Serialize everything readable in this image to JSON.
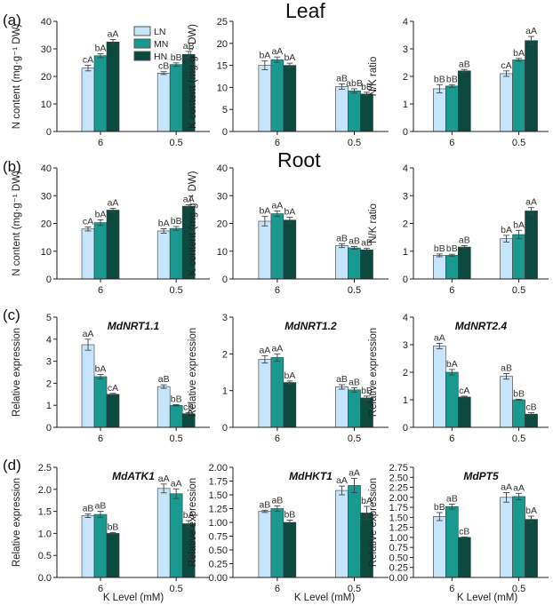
{
  "series_names": [
    "LN",
    "MN",
    "HN"
  ],
  "series_colors": [
    "#c6e5fb",
    "#199990",
    "#0c4a40"
  ],
  "categories": [
    "6",
    "0.5"
  ],
  "section_titles": {
    "leaf": "Leaf",
    "root": "Root"
  },
  "panel_labels": [
    "(a)",
    "(b)",
    "(c)",
    "(d)"
  ],
  "shared_xlabel": "K Level (mM)",
  "chart_data": [
    {
      "type": "bar",
      "row": 0,
      "col": 0,
      "title": "",
      "ylabel": "N content (mg·g⁻¹ DW)",
      "ylim": [
        0,
        40
      ],
      "yticks": [
        "0",
        "10",
        "20",
        "30",
        "40"
      ],
      "series": [
        {
          "name": "LN",
          "values": [
            23,
            21.2
          ],
          "errors": [
            1.0,
            0.5
          ]
        },
        {
          "name": "MN",
          "values": [
            27.5,
            24.3
          ],
          "errors": [
            0.7,
            0.6
          ]
        },
        {
          "name": "HN",
          "values": [
            32.5,
            28
          ],
          "errors": [
            0.9,
            1.1
          ]
        }
      ],
      "labels": [
        [
          "cA",
          "bA",
          "aA"
        ],
        [
          "cB",
          "bB",
          "aB"
        ]
      ]
    },
    {
      "type": "bar",
      "row": 0,
      "col": 1,
      "title": "",
      "ylabel": "K content (mg·g⁻¹ DW)",
      "ylim": [
        0,
        25
      ],
      "yticks": [
        "0",
        "5",
        "10",
        "15",
        "20",
        "25"
      ],
      "series": [
        {
          "name": "LN",
          "values": [
            15,
            10.2
          ],
          "errors": [
            1.0,
            0.6
          ]
        },
        {
          "name": "MN",
          "values": [
            16.3,
            9.2
          ],
          "errors": [
            0.6,
            0.5
          ]
        },
        {
          "name": "HN",
          "values": [
            15,
            8.5
          ],
          "errors": [
            0.5,
            0.4
          ]
        }
      ],
      "labels": [
        [
          "bA",
          "aA",
          "bA"
        ],
        [
          "aB",
          "abB",
          "bB"
        ]
      ]
    },
    {
      "type": "bar",
      "row": 0,
      "col": 2,
      "title": "",
      "ylabel": "N/K ratio",
      "ylim": [
        0,
        4
      ],
      "yticks": [
        "0",
        "1",
        "2",
        "3",
        "4"
      ],
      "series": [
        {
          "name": "LN",
          "values": [
            1.55,
            2.1
          ],
          "errors": [
            0.15,
            0.1
          ]
        },
        {
          "name": "MN",
          "values": [
            1.65,
            2.6
          ],
          "errors": [
            0.05,
            0.05
          ]
        },
        {
          "name": "HN",
          "values": [
            2.2,
            3.3
          ],
          "errors": [
            0.05,
            0.15
          ]
        }
      ],
      "labels": [
        [
          "bB",
          "bB",
          "aB"
        ],
        [
          "cA",
          "bA",
          "aA"
        ]
      ]
    },
    {
      "type": "bar",
      "row": 1,
      "col": 0,
      "title": "",
      "ylabel": "N content (mg·g⁻¹ DW)",
      "ylim": [
        0,
        40
      ],
      "yticks": [
        "0",
        "10",
        "20",
        "30",
        "40"
      ],
      "series": [
        {
          "name": "LN",
          "values": [
            18,
            17.3
          ],
          "errors": [
            0.7,
            0.8
          ]
        },
        {
          "name": "MN",
          "values": [
            20.3,
            18.2
          ],
          "errors": [
            1.0,
            0.7
          ]
        },
        {
          "name": "HN",
          "values": [
            24.8,
            26.2
          ],
          "errors": [
            0.6,
            0.5
          ]
        }
      ],
      "labels": [
        [
          "cA",
          "bA",
          "aA"
        ],
        [
          "bA",
          "bB",
          "aA"
        ]
      ]
    },
    {
      "type": "bar",
      "row": 1,
      "col": 1,
      "title": "",
      "ylabel": "K content (mg·g⁻¹ DW)",
      "ylim": [
        0,
        40
      ],
      "yticks": [
        "0",
        "10",
        "20",
        "30",
        "40"
      ],
      "series": [
        {
          "name": "LN",
          "values": [
            20.8,
            12
          ],
          "errors": [
            1.7,
            0.7
          ]
        },
        {
          "name": "MN",
          "values": [
            23.5,
            11.2
          ],
          "errors": [
            1.0,
            0.5
          ]
        },
        {
          "name": "HN",
          "values": [
            21.2,
            10.5
          ],
          "errors": [
            1.0,
            0.5
          ]
        }
      ],
      "labels": [
        [
          "bA",
          "aA",
          "bA"
        ],
        [
          "aB",
          "aB",
          "aB"
        ]
      ]
    },
    {
      "type": "bar",
      "row": 1,
      "col": 2,
      "title": "",
      "ylabel": "N/K ratio",
      "ylim": [
        0,
        4
      ],
      "yticks": [
        "0",
        "1",
        "2",
        "3",
        "4"
      ],
      "series": [
        {
          "name": "LN",
          "values": [
            0.85,
            1.45
          ],
          "errors": [
            0.05,
            0.12
          ]
        },
        {
          "name": "MN",
          "values": [
            0.85,
            1.6
          ],
          "errors": [
            0.04,
            0.15
          ]
        },
        {
          "name": "HN",
          "values": [
            1.15,
            2.45
          ],
          "errors": [
            0.05,
            0.12
          ]
        }
      ],
      "labels": [
        [
          "bB",
          "bB",
          "aB"
        ],
        [
          "bA",
          "bA",
          "aA"
        ]
      ]
    },
    {
      "type": "bar",
      "row": 2,
      "col": 0,
      "title": "MdNRT1.1",
      "ylabel": "Relative expression",
      "ylim": [
        0,
        5
      ],
      "yticks": [
        "0",
        "1",
        "2",
        "3",
        "4",
        "5"
      ],
      "series": [
        {
          "name": "LN",
          "values": [
            3.75,
            1.85
          ],
          "errors": [
            0.25,
            0.08
          ]
        },
        {
          "name": "MN",
          "values": [
            2.3,
            1.0
          ],
          "errors": [
            0.1,
            0.03
          ]
        },
        {
          "name": "HN",
          "values": [
            1.5,
            0.62
          ],
          "errors": [
            0.04,
            0.04
          ]
        }
      ],
      "labels": [
        [
          "aA",
          "bA",
          "cA"
        ],
        [
          "aB",
          "bB",
          "cB"
        ]
      ]
    },
    {
      "type": "bar",
      "row": 2,
      "col": 1,
      "title": "MdNRT1.2",
      "ylabel": "Relative expression",
      "ylim": [
        0,
        3
      ],
      "yticks": [
        "0",
        "1",
        "2",
        "3"
      ],
      "series": [
        {
          "name": "LN",
          "values": [
            1.85,
            1.1
          ],
          "errors": [
            0.1,
            0.06
          ]
        },
        {
          "name": "MN",
          "values": [
            1.9,
            1.02
          ],
          "errors": [
            0.1,
            0.06
          ]
        },
        {
          "name": "HN",
          "values": [
            1.22,
            0.8
          ],
          "errors": [
            0.04,
            0.05
          ]
        }
      ],
      "labels": [
        [
          "aA",
          "aA",
          "bA"
        ],
        [
          "aB",
          "aB",
          "bB"
        ]
      ]
    },
    {
      "type": "bar",
      "row": 2,
      "col": 2,
      "title": "MdNRT2.4",
      "ylabel": "Relative expression",
      "ylim": [
        0,
        4
      ],
      "yticks": [
        "0",
        "1",
        "2",
        "3",
        "4"
      ],
      "series": [
        {
          "name": "LN",
          "values": [
            2.95,
            1.85
          ],
          "errors": [
            0.1,
            0.1
          ]
        },
        {
          "name": "MN",
          "values": [
            2.0,
            1.0
          ],
          "errors": [
            0.1,
            0.02
          ]
        },
        {
          "name": "HN",
          "values": [
            1.1,
            0.48
          ],
          "errors": [
            0.03,
            0.05
          ]
        }
      ],
      "labels": [
        [
          "aA",
          "bA",
          "cA"
        ],
        [
          "aB",
          "bB",
          "cB"
        ]
      ]
    },
    {
      "type": "bar",
      "row": 3,
      "col": 0,
      "title": "MdATK1",
      "ylabel": "Relative expression",
      "ylim": [
        0,
        2.5
      ],
      "yticks": [
        "0.0",
        "0.5",
        "1.0",
        "1.5",
        "2.0",
        "2.5"
      ],
      "series": [
        {
          "name": "LN",
          "values": [
            1.4,
            2.02
          ],
          "errors": [
            0.04,
            0.1
          ]
        },
        {
          "name": "MN",
          "values": [
            1.43,
            1.9
          ],
          "errors": [
            0.07,
            0.11
          ]
        },
        {
          "name": "HN",
          "values": [
            1.0,
            1.22
          ],
          "errors": [
            0.02,
            0.07
          ]
        }
      ],
      "labels": [
        [
          "aB",
          "aB",
          "bB"
        ],
        [
          "aA",
          "aA",
          "bA"
        ]
      ]
    },
    {
      "type": "bar",
      "row": 3,
      "col": 1,
      "title": "MdHKT1",
      "ylabel": "Relative expression",
      "ylim": [
        0,
        2.0
      ],
      "yticks": [
        "0.00",
        "0.25",
        "0.50",
        "0.75",
        "1.00",
        "1.25",
        "1.50",
        "1.75",
        "2.00"
      ],
      "series": [
        {
          "name": "LN",
          "values": [
            1.2,
            1.58
          ],
          "errors": [
            0.02,
            0.08
          ]
        },
        {
          "name": "MN",
          "values": [
            1.25,
            1.67
          ],
          "errors": [
            0.05,
            0.13
          ]
        },
        {
          "name": "HN",
          "values": [
            1.0,
            1.17
          ],
          "errors": [
            0.04,
            0.12
          ]
        }
      ],
      "labels": [
        [
          "aB",
          "aB",
          "bB"
        ],
        [
          "aA",
          "aA",
          "bA"
        ]
      ]
    },
    {
      "type": "bar",
      "row": 3,
      "col": 2,
      "title": "MdPT5",
      "ylabel": "Relative expression",
      "ylim": [
        0,
        2.75
      ],
      "yticks": [
        "0.00",
        "0.25",
        "0.50",
        "0.75",
        "1.00",
        "1.25",
        "1.50",
        "1.75",
        "2.00",
        "2.25",
        "2.50",
        "2.75"
      ],
      "series": [
        {
          "name": "LN",
          "values": [
            1.52,
            2.0
          ],
          "errors": [
            0.1,
            0.12
          ]
        },
        {
          "name": "MN",
          "values": [
            1.77,
            2.02
          ],
          "errors": [
            0.06,
            0.08
          ]
        },
        {
          "name": "HN",
          "values": [
            1.0,
            1.45
          ],
          "errors": [
            0.01,
            0.08
          ]
        }
      ],
      "labels": [
        [
          "bB",
          "aB",
          "cB"
        ],
        [
          "aA",
          "aA",
          "bA"
        ]
      ]
    }
  ]
}
